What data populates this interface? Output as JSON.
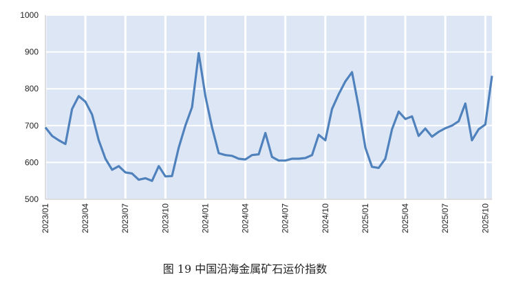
{
  "chart_data": {
    "type": "line",
    "title": "图 19 中国沿海金属矿石运价指数",
    "categories": [
      "2023/01",
      null,
      null,
      null,
      null,
      null,
      "2023/04",
      null,
      null,
      null,
      null,
      null,
      "2023/07",
      null,
      null,
      null,
      null,
      null,
      "2023/10",
      null,
      null,
      null,
      null,
      null,
      "2024/01",
      null,
      null,
      null,
      null,
      null,
      "2024/04",
      null,
      null,
      null,
      null,
      null,
      "2024/07",
      null,
      null,
      null,
      null,
      null,
      "2024/10",
      null,
      null,
      null,
      null,
      null,
      "2025/01",
      null,
      null,
      null,
      null,
      null,
      "2025/04",
      null,
      null,
      null,
      null,
      null,
      "2025/07",
      null,
      null,
      null,
      null,
      null,
      "2025/10",
      null
    ],
    "series": [
      {
        "name": "中国沿海金属矿石运价指数",
        "color": "#4f81bd",
        "values": [
          695,
          672,
          660,
          650,
          745,
          780,
          765,
          730,
          660,
          610,
          580,
          590,
          573,
          570,
          553,
          557,
          550,
          590,
          562,
          563,
          640,
          700,
          750,
          897,
          780,
          695,
          625,
          620,
          618,
          610,
          608,
          620,
          622,
          680,
          615,
          605,
          605,
          610,
          610,
          612,
          620,
          675,
          660,
          745,
          785,
          820,
          845,
          750,
          640,
          588,
          585,
          610,
          690,
          738,
          718,
          725,
          672,
          692,
          670,
          683,
          693,
          700,
          712,
          760,
          660,
          690,
          703,
          835
        ]
      }
    ],
    "ylim": [
      500,
      1000
    ],
    "yticks": [
      500,
      600,
      700,
      800,
      900,
      1000
    ],
    "grid": true
  }
}
